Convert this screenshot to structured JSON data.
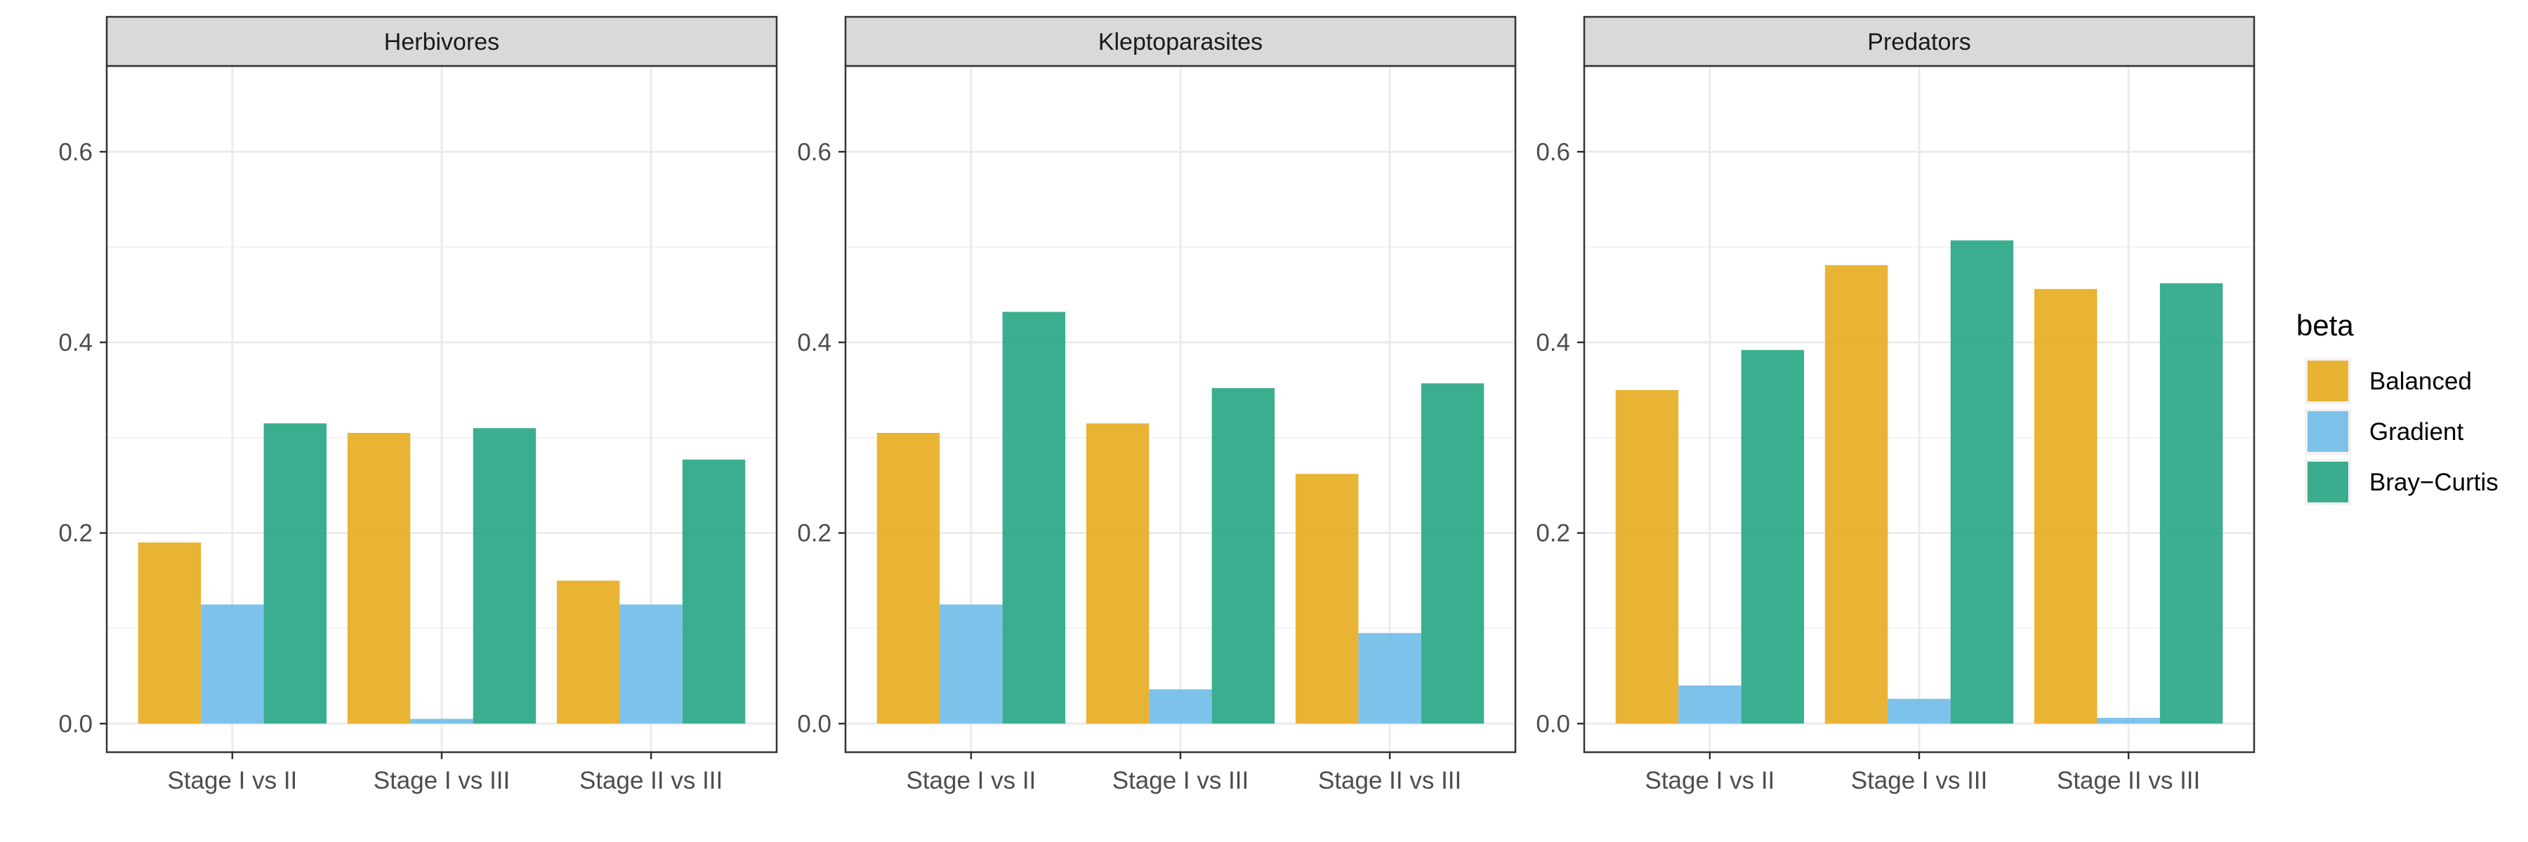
{
  "chart_data": {
    "type": "bar",
    "facets": [
      {
        "title": "Herbivores",
        "categories": [
          "Stage I vs II",
          "Stage I vs III",
          "Stage II vs III"
        ],
        "series": [
          {
            "name": "Balanced",
            "values": [
              0.19,
              0.305,
              0.15
            ]
          },
          {
            "name": "Gradient",
            "values": [
              0.125,
              0.005,
              0.125
            ]
          },
          {
            "name": "Bray−Curtis",
            "values": [
              0.315,
              0.31,
              0.277
            ]
          }
        ]
      },
      {
        "title": "Kleptoparasites",
        "categories": [
          "Stage I vs II",
          "Stage I vs III",
          "Stage II vs III"
        ],
        "series": [
          {
            "name": "Balanced",
            "values": [
              0.305,
              0.315,
              0.262
            ]
          },
          {
            "name": "Gradient",
            "values": [
              0.125,
              0.036,
              0.095
            ]
          },
          {
            "name": "Bray−Curtis",
            "values": [
              0.432,
              0.352,
              0.357
            ]
          }
        ]
      },
      {
        "title": "Predators",
        "categories": [
          "Stage I vs II",
          "Stage I vs III",
          "Stage II vs III"
        ],
        "series": [
          {
            "name": "Balanced",
            "values": [
              0.35,
              0.481,
              0.456
            ]
          },
          {
            "name": "Gradient",
            "values": [
              0.04,
              0.026,
              0.006
            ]
          },
          {
            "name": "Bray−Curtis",
            "values": [
              0.392,
              0.507,
              0.462
            ]
          }
        ]
      }
    ],
    "y_ticks": [
      "0.0",
      "0.2",
      "0.4",
      "0.6"
    ],
    "ylim": [
      -0.03,
      0.69
    ],
    "grid": true,
    "legend": {
      "title": "beta",
      "position": "right",
      "entries": [
        "Balanced",
        "Gradient",
        "Bray−Curtis"
      ]
    },
    "colors": {
      "Balanced": "#E6A817",
      "Gradient": "#6BB9E8",
      "Bray−Curtis": "#1FA37E"
    }
  }
}
